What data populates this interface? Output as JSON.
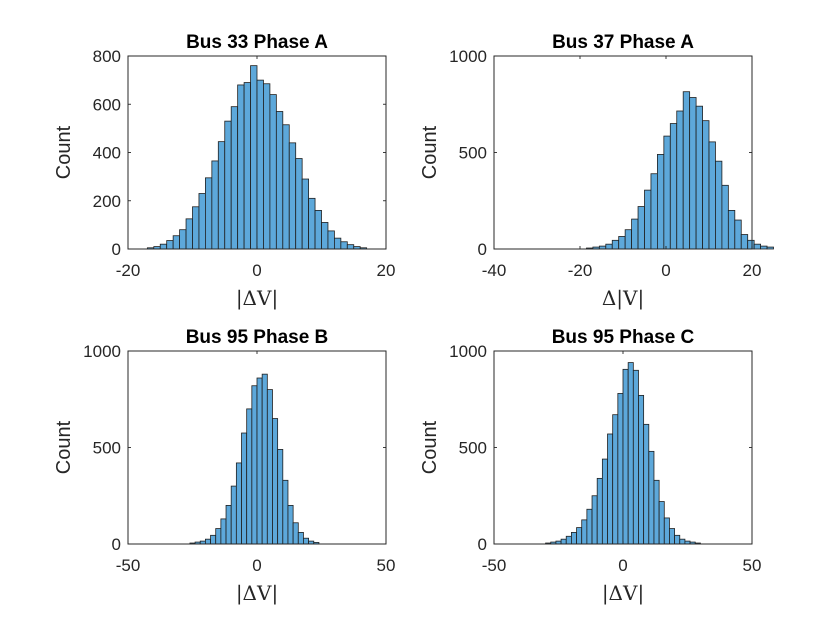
{
  "chart_data": [
    {
      "type": "bar",
      "title": "Bus 33 Phase A",
      "xlabel": "|ΔV|",
      "ylabel": "Count",
      "xlim": [
        -20,
        20
      ],
      "ylim": [
        0,
        800
      ],
      "xticks": [
        "-20",
        "0",
        "20"
      ],
      "yticks": [
        "0",
        "200",
        "400",
        "600",
        "800"
      ],
      "bin_start": -17,
      "bin_width": 1,
      "values": [
        5,
        10,
        20,
        35,
        55,
        80,
        125,
        175,
        230,
        295,
        365,
        445,
        530,
        590,
        680,
        690,
        760,
        700,
        685,
        640,
        570,
        515,
        440,
        375,
        290,
        210,
        160,
        110,
        75,
        45,
        30,
        18,
        10,
        5
      ]
    },
    {
      "type": "bar",
      "title": "Bus 37 Phase A",
      "xlabel": "Δ|V|",
      "ylabel": "Count",
      "xlim": [
        -40,
        20
      ],
      "ylim": [
        0,
        1000
      ],
      "xticks": [
        "-40",
        "-20",
        "0",
        "20"
      ],
      "yticks": [
        "0",
        "500",
        "1000"
      ],
      "bin_start": -18.5,
      "bin_width": 1.5,
      "values": [
        5,
        10,
        15,
        25,
        45,
        65,
        100,
        155,
        220,
        305,
        390,
        490,
        585,
        650,
        715,
        815,
        785,
        740,
        665,
        555,
        455,
        330,
        200,
        150,
        75,
        45,
        25,
        15,
        10
      ]
    },
    {
      "type": "bar",
      "title": "Bus 95 Phase B",
      "xlabel": "|ΔV|",
      "ylabel": "Count",
      "xlim": [
        -50,
        50
      ],
      "ylim": [
        0,
        1000
      ],
      "xticks": [
        "-50",
        "0",
        "50"
      ],
      "yticks": [
        "0",
        "500",
        "1000"
      ],
      "bin_start": -26,
      "bin_width": 2,
      "values": [
        5,
        10,
        15,
        25,
        45,
        80,
        130,
        200,
        300,
        420,
        575,
        700,
        820,
        860,
        880,
        800,
        650,
        490,
        330,
        200,
        110,
        60,
        30,
        15,
        8
      ]
    },
    {
      "type": "bar",
      "title": "Bus 95 Phase C",
      "xlabel": "|ΔV|",
      "ylabel": "Count",
      "xlim": [
        -50,
        50
      ],
      "ylim": [
        0,
        1000
      ],
      "xticks": [
        "-50",
        "0",
        "50"
      ],
      "yticks": [
        "0",
        "500",
        "1000"
      ],
      "bin_start": -30,
      "bin_width": 2,
      "values": [
        5,
        10,
        15,
        25,
        40,
        60,
        85,
        125,
        180,
        250,
        340,
        440,
        570,
        670,
        780,
        905,
        940,
        900,
        770,
        620,
        480,
        330,
        220,
        135,
        80,
        45,
        25,
        15,
        10,
        5
      ]
    }
  ]
}
